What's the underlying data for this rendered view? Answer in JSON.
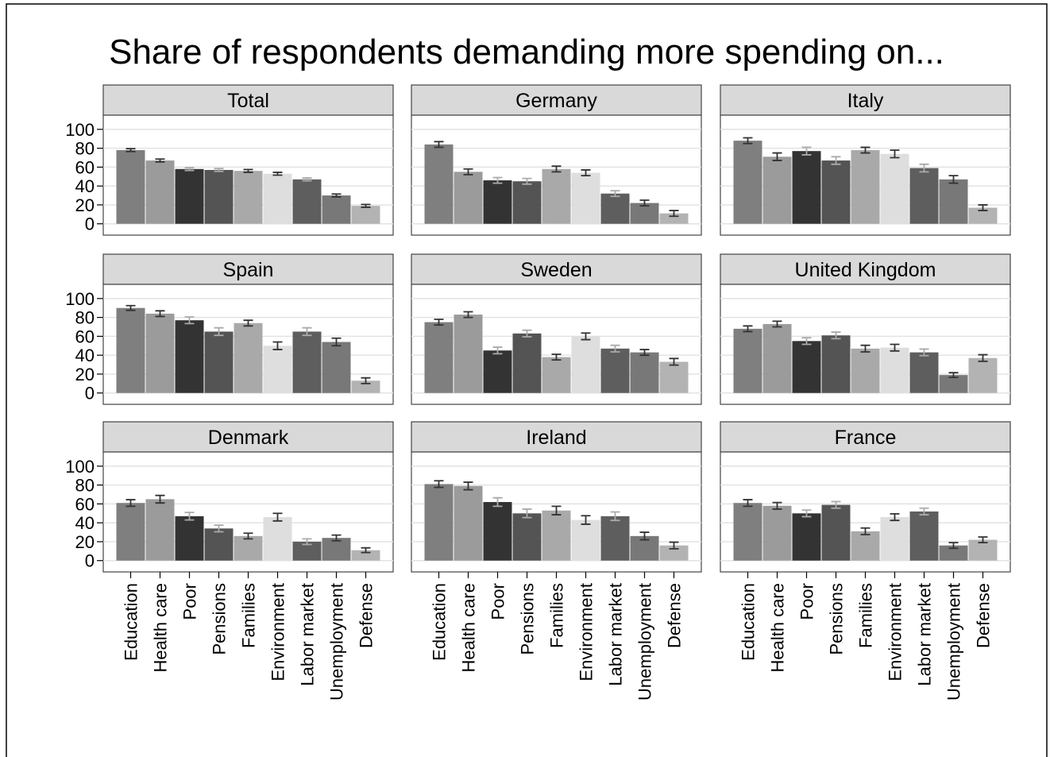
{
  "title": "Share of respondents demanding more spending on...",
  "categories": [
    "Education",
    "Health care",
    "Poor",
    "Pensions",
    "Families",
    "Environment",
    "Labor market",
    "Unemployment",
    "Defense"
  ],
  "colors": [
    "#7f7f7f",
    "#9b9b9b",
    "#333333",
    "#545454",
    "#a9a9a9",
    "#dedede",
    "#5e5e5e",
    "#787878",
    "#b3b3b3"
  ],
  "error_colors": [
    "#333333",
    "#333333",
    "#aaaaaa",
    "#aaaaaa",
    "#333333",
    "#333333",
    "#aaaaaa",
    "#333333",
    "#333333"
  ],
  "ylim": [
    -12,
    115
  ],
  "yticks": [
    0,
    20,
    40,
    60,
    80,
    100
  ],
  "grid": true,
  "chart_data": [
    {
      "type": "bar",
      "title": "Total",
      "values": [
        78,
        67,
        58,
        57,
        56,
        53,
        47,
        30,
        19
      ],
      "errors": [
        1.5,
        1.5,
        1.5,
        1.5,
        1.5,
        1.5,
        1.5,
        1.5,
        1.5
      ]
    },
    {
      "type": "bar",
      "title": "Germany",
      "values": [
        84,
        55,
        46,
        45,
        58,
        54,
        32,
        22,
        11
      ],
      "errors": [
        3,
        3,
        3,
        3,
        3,
        3,
        3,
        3,
        3
      ]
    },
    {
      "type": "bar",
      "title": "Italy",
      "values": [
        88,
        71,
        77,
        67,
        78,
        74,
        59,
        47,
        17
      ],
      "errors": [
        3,
        4,
        4,
        4,
        3,
        4,
        4,
        4,
        3
      ]
    },
    {
      "type": "bar",
      "title": "Spain",
      "values": [
        90,
        84,
        77,
        65,
        74,
        50,
        65,
        54,
        13
      ],
      "errors": [
        2.5,
        3,
        3.5,
        4,
        3,
        4,
        4,
        4,
        3
      ]
    },
    {
      "type": "bar",
      "title": "Sweden",
      "values": [
        75,
        83,
        45,
        63,
        38,
        60,
        47,
        43,
        33
      ],
      "errors": [
        3,
        3,
        3.5,
        3.5,
        3,
        3.5,
        3.5,
        3,
        3.5
      ]
    },
    {
      "type": "bar",
      "title": "United Kingdom",
      "values": [
        68,
        73,
        55,
        61,
        47,
        48,
        43,
        19,
        37
      ],
      "errors": [
        3,
        3,
        3.5,
        3.5,
        3.5,
        3.5,
        3.5,
        2.5,
        3.5
      ]
    },
    {
      "type": "bar",
      "title": "Denmark",
      "values": [
        61,
        65,
        47,
        34,
        26,
        46,
        20,
        24,
        11
      ],
      "errors": [
        3.5,
        4,
        4,
        3.5,
        3,
        4,
        3,
        3,
        2.5
      ]
    },
    {
      "type": "bar",
      "title": "Ireland",
      "values": [
        81,
        79,
        62,
        50,
        53,
        43,
        47,
        26,
        16
      ],
      "errors": [
        3.5,
        4,
        4.5,
        4.5,
        4.5,
        4.5,
        4.5,
        4,
        3.5
      ]
    },
    {
      "type": "bar",
      "title": "France",
      "values": [
        61,
        58,
        50,
        59,
        31,
        46,
        52,
        16,
        22
      ],
      "errors": [
        3.5,
        3.5,
        3.5,
        3.5,
        3.5,
        3.5,
        3.5,
        3,
        3
      ]
    }
  ]
}
